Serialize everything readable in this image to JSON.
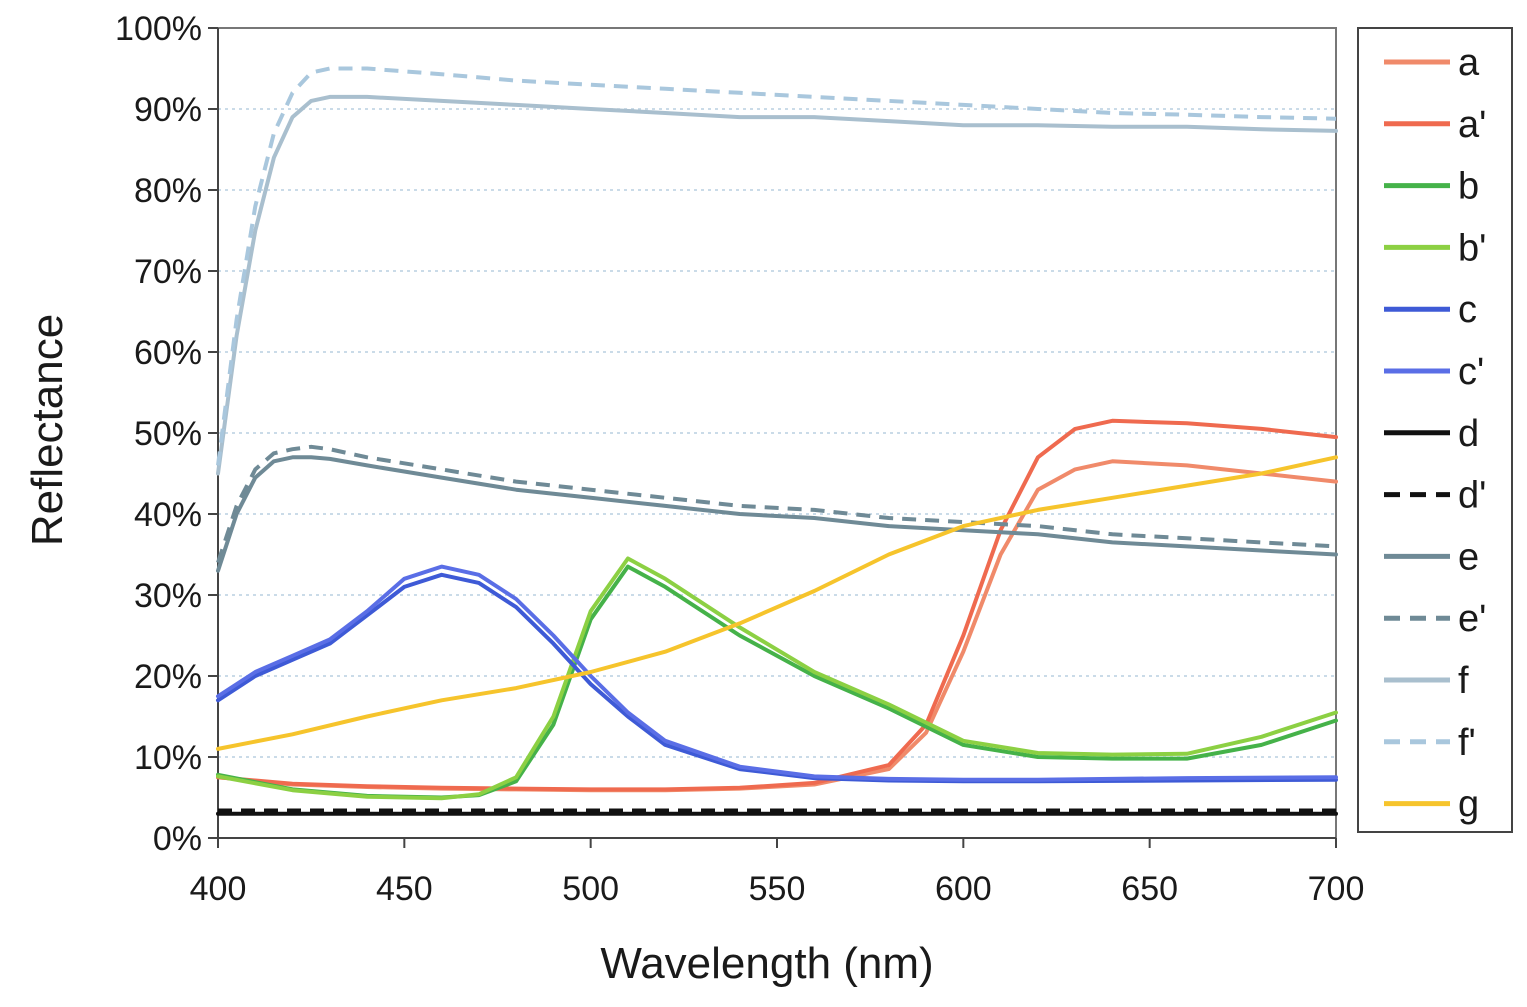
{
  "chart_data": {
    "type": "line",
    "title": "",
    "xlabel": "Wavelength (nm)",
    "ylabel": "Reflectance",
    "xlim": [
      400,
      700
    ],
    "ylim": [
      0,
      100
    ],
    "x_ticks": [
      400,
      450,
      500,
      550,
      600,
      650,
      700
    ],
    "x_tick_labels": [
      "400",
      "450",
      "500",
      "550",
      "600",
      "650",
      "700"
    ],
    "y_ticks": [
      0,
      10,
      20,
      30,
      40,
      50,
      60,
      70,
      80,
      90,
      100
    ],
    "y_tick_labels": [
      "0%",
      "10%",
      "20%",
      "30%",
      "40%",
      "50%",
      "60%",
      "70%",
      "80%",
      "90%",
      "100%"
    ],
    "grid": "horizontal dotted",
    "legend_position": "right",
    "series": [
      {
        "name": "a",
        "color": "#f08a6a",
        "dash": "solid",
        "x": [
          400,
          420,
          440,
          460,
          480,
          500,
          520,
          540,
          560,
          580,
          590,
          600,
          610,
          620,
          630,
          640,
          660,
          680,
          700
        ],
        "y": [
          7.5,
          6.6,
          6.3,
          6.1,
          6.0,
          5.9,
          5.9,
          6.1,
          6.6,
          8.5,
          13,
          23,
          35,
          43,
          45.5,
          46.5,
          46,
          45,
          44
        ]
      },
      {
        "name": "a'",
        "color": "#ef6a4f",
        "dash": "solid",
        "x": [
          400,
          420,
          440,
          460,
          480,
          500,
          520,
          540,
          560,
          580,
          590,
          600,
          610,
          620,
          630,
          640,
          660,
          680,
          700
        ],
        "y": [
          7.5,
          6.7,
          6.4,
          6.2,
          6.1,
          6.0,
          6.0,
          6.2,
          6.8,
          9,
          14,
          25,
          38,
          47,
          50.5,
          51.5,
          51.2,
          50.5,
          49.5
        ]
      },
      {
        "name": "b",
        "color": "#45b249",
        "dash": "solid",
        "x": [
          400,
          420,
          440,
          460,
          470,
          480,
          490,
          500,
          510,
          520,
          540,
          560,
          580,
          600,
          620,
          640,
          660,
          680,
          700
        ],
        "y": [
          7.8,
          6.0,
          5.2,
          5.0,
          5.3,
          7,
          14,
          27,
          33.5,
          31,
          25,
          20,
          16,
          11.5,
          10,
          9.8,
          9.8,
          11.5,
          14.5
        ]
      },
      {
        "name": "b'",
        "color": "#8cd043",
        "dash": "solid",
        "x": [
          400,
          420,
          440,
          460,
          470,
          480,
          490,
          500,
          510,
          520,
          540,
          560,
          580,
          600,
          620,
          640,
          660,
          680,
          700
        ],
        "y": [
          7.6,
          5.9,
          5.1,
          4.9,
          5.4,
          7.5,
          15,
          28,
          34.5,
          32,
          26,
          20.5,
          16.5,
          12,
          10.5,
          10.3,
          10.4,
          12.5,
          15.5
        ]
      },
      {
        "name": "c",
        "color": "#3e5ad6",
        "dash": "solid",
        "x": [
          400,
          410,
          420,
          430,
          440,
          450,
          460,
          470,
          480,
          490,
          500,
          510,
          520,
          540,
          560,
          580,
          600,
          620,
          660,
          700
        ],
        "y": [
          17,
          20,
          22,
          24,
          27.5,
          31,
          32.5,
          31.5,
          28.5,
          24,
          19,
          15,
          11.5,
          8.5,
          7.4,
          7.1,
          7.0,
          7.0,
          7.1,
          7.2
        ]
      },
      {
        "name": "c'",
        "color": "#5a6ee6",
        "dash": "solid",
        "x": [
          400,
          410,
          420,
          430,
          440,
          450,
          460,
          470,
          480,
          490,
          500,
          510,
          520,
          540,
          560,
          580,
          600,
          620,
          660,
          700
        ],
        "y": [
          17.5,
          20.5,
          22.5,
          24.5,
          28,
          32,
          33.5,
          32.5,
          29.5,
          25,
          20,
          15.5,
          12,
          8.8,
          7.6,
          7.3,
          7.2,
          7.2,
          7.4,
          7.5
        ]
      },
      {
        "name": "d",
        "color": "#111111",
        "dash": "solid",
        "x": [
          400,
          500,
          600,
          700
        ],
        "y": [
          3.0,
          3.0,
          3.0,
          3.0
        ]
      },
      {
        "name": "d'",
        "color": "#111111",
        "dash": "dashed",
        "x": [
          400,
          500,
          600,
          700
        ],
        "y": [
          3.4,
          3.4,
          3.4,
          3.4
        ]
      },
      {
        "name": "e",
        "color": "#6f8a96",
        "dash": "solid",
        "x": [
          400,
          405,
          410,
          415,
          420,
          425,
          430,
          440,
          460,
          480,
          500,
          520,
          540,
          560,
          580,
          600,
          620,
          640,
          660,
          680,
          700
        ],
        "y": [
          33,
          40,
          44.5,
          46.5,
          47,
          47,
          46.8,
          46,
          44.5,
          43,
          42,
          41,
          40,
          39.5,
          38.5,
          38,
          37.5,
          36.5,
          36,
          35.5,
          35
        ]
      },
      {
        "name": "e'",
        "color": "#6f8a96",
        "dash": "dashed",
        "x": [
          400,
          405,
          410,
          415,
          420,
          425,
          430,
          440,
          460,
          480,
          500,
          520,
          540,
          560,
          580,
          600,
          620,
          640,
          660,
          680,
          700
        ],
        "y": [
          34,
          41,
          45.5,
          47.5,
          48,
          48.3,
          48,
          47,
          45.5,
          44,
          43,
          42,
          41,
          40.5,
          39.5,
          39,
          38.5,
          37.5,
          37,
          36.5,
          36
        ]
      },
      {
        "name": "f",
        "color": "#a9bfce",
        "dash": "solid",
        "x": [
          400,
          405,
          410,
          415,
          420,
          425,
          430,
          440,
          460,
          480,
          500,
          520,
          540,
          560,
          580,
          600,
          620,
          640,
          660,
          680,
          700
        ],
        "y": [
          45,
          62,
          75,
          84,
          89,
          91,
          91.5,
          91.5,
          91,
          90.5,
          90,
          89.5,
          89,
          89,
          88.5,
          88,
          88,
          87.8,
          87.8,
          87.5,
          87.3
        ]
      },
      {
        "name": "f'",
        "color": "#a9c7dd",
        "dash": "dashed",
        "x": [
          400,
          405,
          410,
          415,
          420,
          425,
          430,
          440,
          460,
          480,
          500,
          520,
          540,
          560,
          580,
          600,
          620,
          640,
          660,
          680,
          700
        ],
        "y": [
          46,
          64,
          78,
          87,
          92,
          94.5,
          95,
          95,
          94.3,
          93.5,
          93,
          92.5,
          92,
          91.5,
          91,
          90.5,
          90,
          89.5,
          89.3,
          89,
          88.8
        ]
      },
      {
        "name": "g",
        "color": "#f6c42c",
        "dash": "solid",
        "x": [
          400,
          420,
          440,
          460,
          480,
          500,
          520,
          540,
          560,
          580,
          600,
          620,
          640,
          660,
          680,
          700
        ],
        "y": [
          11,
          12.8,
          15,
          17,
          18.5,
          20.5,
          23,
          26.5,
          30.5,
          35,
          38.5,
          40.5,
          42,
          43.5,
          45,
          47
        ]
      }
    ]
  }
}
